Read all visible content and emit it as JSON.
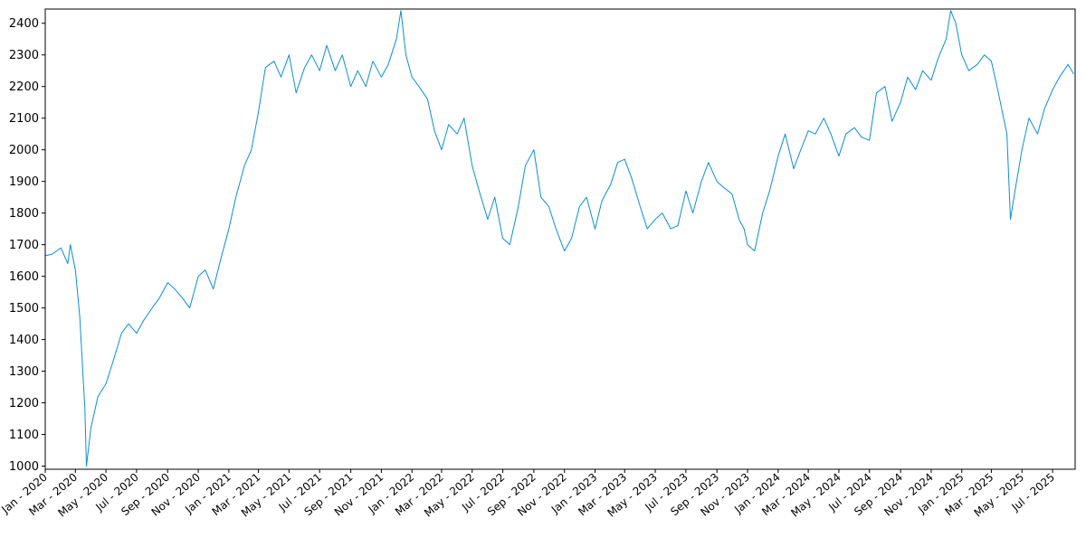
{
  "chart_data": {
    "type": "line",
    "title": "",
    "xlabel": "",
    "ylabel": "",
    "grid": false,
    "line_color": "#0b8fd4",
    "ylim": [
      990,
      2445
    ],
    "xlim": [
      "2020-01-01",
      "2025-08-15"
    ],
    "yticks": [
      1000,
      1100,
      1200,
      1300,
      1400,
      1500,
      1600,
      1700,
      1800,
      1900,
      2000,
      2100,
      2200,
      2300,
      2400
    ],
    "xticks": [
      {
        "date": "2020-01-01",
        "label": "Jan - 2020"
      },
      {
        "date": "2020-03-01",
        "label": "Mar - 2020"
      },
      {
        "date": "2020-05-01",
        "label": "May - 2020"
      },
      {
        "date": "2020-07-01",
        "label": "Jul - 2020"
      },
      {
        "date": "2020-09-01",
        "label": "Sep - 2020"
      },
      {
        "date": "2020-11-01",
        "label": "Nov - 2020"
      },
      {
        "date": "2021-01-01",
        "label": "Jan - 2021"
      },
      {
        "date": "2021-03-01",
        "label": "Mar - 2021"
      },
      {
        "date": "2021-05-01",
        "label": "May - 2021"
      },
      {
        "date": "2021-07-01",
        "label": "Jul - 2021"
      },
      {
        "date": "2021-09-01",
        "label": "Sep - 2021"
      },
      {
        "date": "2021-11-01",
        "label": "Nov - 2021"
      },
      {
        "date": "2022-01-01",
        "label": "Jan - 2022"
      },
      {
        "date": "2022-03-01",
        "label": "Mar - 2022"
      },
      {
        "date": "2022-05-01",
        "label": "May - 2022"
      },
      {
        "date": "2022-07-01",
        "label": "Jul - 2022"
      },
      {
        "date": "2022-09-01",
        "label": "Sep - 2022"
      },
      {
        "date": "2022-11-01",
        "label": "Nov - 2022"
      },
      {
        "date": "2023-01-01",
        "label": "Jan - 2023"
      },
      {
        "date": "2023-03-01",
        "label": "Mar - 2023"
      },
      {
        "date": "2023-05-01",
        "label": "May - 2023"
      },
      {
        "date": "2023-07-01",
        "label": "Jul - 2023"
      },
      {
        "date": "2023-09-01",
        "label": "Sep - 2023"
      },
      {
        "date": "2023-11-01",
        "label": "Nov - 2023"
      },
      {
        "date": "2024-01-01",
        "label": "Jan - 2024"
      },
      {
        "date": "2024-03-01",
        "label": "Mar - 2024"
      },
      {
        "date": "2024-05-01",
        "label": "May - 2024"
      },
      {
        "date": "2024-07-01",
        "label": "Jul - 2024"
      },
      {
        "date": "2024-09-01",
        "label": "Sep - 2024"
      },
      {
        "date": "2024-11-01",
        "label": "Nov - 2024"
      },
      {
        "date": "2025-01-01",
        "label": "Jan - 2025"
      },
      {
        "date": "2025-03-01",
        "label": "Mar - 2025"
      },
      {
        "date": "2025-05-01",
        "label": "May - 2025"
      },
      {
        "date": "2025-07-01",
        "label": "Jul - 2025"
      }
    ],
    "series": [
      {
        "x": [
          "2020-01-01",
          "2020-01-15",
          "2020-02-01",
          "2020-02-15",
          "2020-02-20",
          "2020-03-01",
          "2020-03-10",
          "2020-03-20",
          "2020-03-23",
          "2020-04-01",
          "2020-04-15",
          "2020-05-01",
          "2020-05-15",
          "2020-06-01",
          "2020-06-15",
          "2020-07-01",
          "2020-07-15",
          "2020-08-01",
          "2020-08-15",
          "2020-09-01",
          "2020-09-15",
          "2020-10-01",
          "2020-10-15",
          "2020-11-01",
          "2020-11-15",
          "2020-12-01",
          "2020-12-15",
          "2021-01-01",
          "2021-01-15",
          "2021-02-01",
          "2021-02-15",
          "2021-03-01",
          "2021-03-15",
          "2021-04-01",
          "2021-04-15",
          "2021-05-01",
          "2021-05-15",
          "2021-06-01",
          "2021-06-15",
          "2021-07-01",
          "2021-07-15",
          "2021-08-01",
          "2021-08-15",
          "2021-09-01",
          "2021-09-15",
          "2021-10-01",
          "2021-10-15",
          "2021-11-01",
          "2021-11-15",
          "2021-12-01",
          "2021-12-10",
          "2021-12-20",
          "2022-01-01",
          "2022-01-15",
          "2022-02-01",
          "2022-02-15",
          "2022-03-01",
          "2022-03-15",
          "2022-04-01",
          "2022-04-15",
          "2022-05-01",
          "2022-05-15",
          "2022-06-01",
          "2022-06-15",
          "2022-07-01",
          "2022-07-15",
          "2022-08-01",
          "2022-08-15",
          "2022-09-01",
          "2022-09-15",
          "2022-10-01",
          "2022-10-15",
          "2022-11-01",
          "2022-11-15",
          "2022-12-01",
          "2022-12-15",
          "2023-01-01",
          "2023-01-15",
          "2023-02-01",
          "2023-02-15",
          "2023-03-01",
          "2023-03-15",
          "2023-04-01",
          "2023-04-15",
          "2023-05-01",
          "2023-05-15",
          "2023-06-01",
          "2023-06-15",
          "2023-07-01",
          "2023-07-15",
          "2023-08-01",
          "2023-08-15",
          "2023-09-01",
          "2023-09-15",
          "2023-10-01",
          "2023-10-15",
          "2023-10-25",
          "2023-11-01",
          "2023-11-15",
          "2023-12-01",
          "2023-12-15",
          "2024-01-01",
          "2024-01-15",
          "2024-02-01",
          "2024-02-15",
          "2024-03-01",
          "2024-03-15",
          "2024-04-01",
          "2024-04-15",
          "2024-05-01",
          "2024-05-15",
          "2024-06-01",
          "2024-06-15",
          "2024-07-01",
          "2024-07-15",
          "2024-08-01",
          "2024-08-15",
          "2024-09-01",
          "2024-09-15",
          "2024-10-01",
          "2024-10-15",
          "2024-11-01",
          "2024-11-15",
          "2024-12-01",
          "2024-12-10",
          "2024-12-20",
          "2025-01-01",
          "2025-01-15",
          "2025-02-01",
          "2025-02-15",
          "2025-03-01",
          "2025-03-15",
          "2025-04-01",
          "2025-04-08",
          "2025-04-15",
          "2025-05-01",
          "2025-05-15",
          "2025-06-01",
          "2025-06-15",
          "2025-07-01",
          "2025-07-15",
          "2025-08-01",
          "2025-08-12"
        ],
        "y": [
          1665,
          1670,
          1690,
          1640,
          1700,
          1620,
          1470,
          1180,
          1000,
          1120,
          1220,
          1260,
          1330,
          1420,
          1450,
          1420,
          1460,
          1500,
          1530,
          1580,
          1560,
          1530,
          1500,
          1600,
          1620,
          1560,
          1650,
          1750,
          1850,
          1950,
          2000,
          2120,
          2260,
          2280,
          2230,
          2300,
          2180,
          2260,
          2300,
          2250,
          2330,
          2250,
          2300,
          2200,
          2250,
          2200,
          2280,
          2230,
          2270,
          2350,
          2440,
          2300,
          2230,
          2200,
          2160,
          2060,
          2000,
          2080,
          2050,
          2100,
          1950,
          1870,
          1780,
          1850,
          1720,
          1700,
          1820,
          1950,
          2000,
          1850,
          1820,
          1750,
          1680,
          1720,
          1820,
          1850,
          1750,
          1840,
          1890,
          1960,
          1970,
          1910,
          1820,
          1750,
          1780,
          1800,
          1750,
          1760,
          1870,
          1800,
          1900,
          1960,
          1900,
          1880,
          1860,
          1780,
          1750,
          1700,
          1680,
          1800,
          1870,
          1980,
          2050,
          1940,
          2000,
          2060,
          2050,
          2100,
          2050,
          1980,
          2050,
          2070,
          2040,
          2030,
          2180,
          2200,
          2090,
          2150,
          2230,
          2190,
          2250,
          2220,
          2290,
          2350,
          2440,
          2400,
          2300,
          2250,
          2270,
          2300,
          2280,
          2180,
          2050,
          1780,
          1850,
          2000,
          2100,
          2050,
          2130,
          2190,
          2230,
          2270,
          2240
        ]
      }
    ]
  }
}
